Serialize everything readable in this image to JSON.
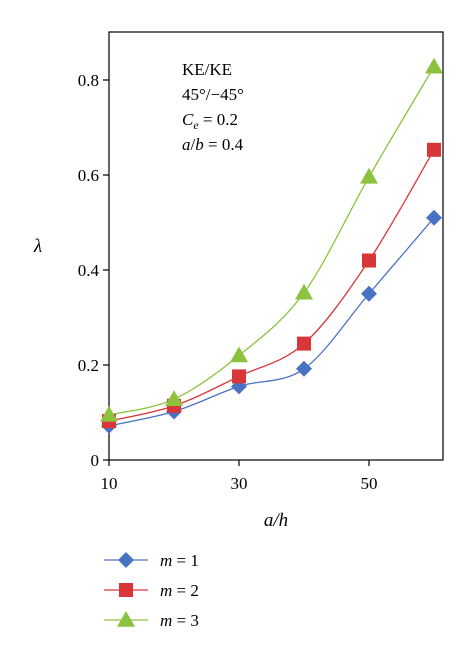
{
  "chart_data": {
    "type": "line",
    "title": "",
    "xlabel": "a/h",
    "ylabel": "λ",
    "xlim": [
      10,
      60
    ],
    "ylim": [
      0,
      0.9
    ],
    "xticks": [
      10,
      30,
      50
    ],
    "yticks": [
      0,
      0.2,
      0.4,
      0.6,
      0.8
    ],
    "xtick_labels": [
      "10",
      "30",
      "50"
    ],
    "ytick_labels": [
      "0",
      "0.2",
      "0.4",
      "0.6",
      "0.8"
    ],
    "grid": false,
    "legend_position": "bottom-left",
    "annotations": [
      "KE/KE",
      "45°/−45°",
      "Ce = 0.2",
      "a/b = 0.4"
    ],
    "x": [
      10,
      20,
      30,
      40,
      50,
      60
    ],
    "series": [
      {
        "name": "m = 1",
        "marker": "diamond",
        "color": "#4a72c4",
        "values": [
          0.072,
          0.102,
          0.155,
          0.192,
          0.35,
          0.51
        ]
      },
      {
        "name": "m = 2",
        "marker": "square",
        "color": "#d9363a",
        "values": [
          0.082,
          0.114,
          0.176,
          0.245,
          0.42,
          0.653
        ]
      },
      {
        "name": "m = 3",
        "marker": "triangle",
        "color": "#8dc23e",
        "values": [
          0.095,
          0.128,
          0.22,
          0.352,
          0.596,
          0.828
        ]
      }
    ]
  }
}
